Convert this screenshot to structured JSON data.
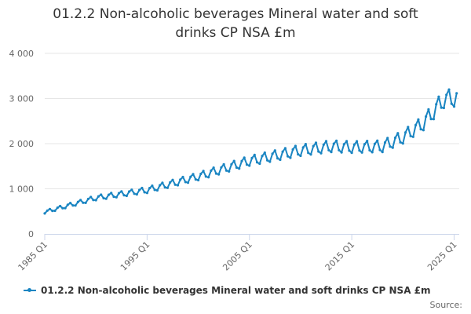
{
  "title_lines": [
    "01.2.2 Non-alcoholic beverages Mineral water and soft",
    "drinks CP NSA £m"
  ],
  "legend_label": "01.2.2 Non-alcoholic beverages Mineral water and soft drinks CP NSA £m",
  "source_label": "Source:",
  "colors": {
    "series": "#1a85c2",
    "grid": "#e6e6e6",
    "axis": "#ccd6eb"
  },
  "chart_data": {
    "type": "line",
    "title": "01.2.2 Non-alcoholic beverages Mineral water and soft drinks CP NSA £m",
    "xlabel": "",
    "ylabel": "",
    "x_range": [
      1985,
      2025.5
    ],
    "ylim": [
      0,
      4000
    ],
    "y_ticks": [
      0,
      1000,
      2000,
      3000,
      4000
    ],
    "y_tick_labels": [
      "0",
      "1 000",
      "2 000",
      "3 000",
      "4 000"
    ],
    "x_ticks": [
      1985,
      1995,
      2005,
      2015,
      2025
    ],
    "x_tick_labels": [
      "1985 Q1",
      "1995 Q1",
      "2005 Q1",
      "2015 Q1",
      "2025 Q1"
    ],
    "grid": true,
    "legend_position": "bottom",
    "quarterly_pattern": [
      -90,
      70,
      130,
      -50
    ],
    "series": [
      {
        "name": "01.2.2 Non-alcoholic beverages Mineral water and soft drinks CP NSA £m",
        "annual_trend": [
          {
            "year": 1985,
            "value": 480
          },
          {
            "year": 1990,
            "value": 790
          },
          {
            "year": 1995,
            "value": 960
          },
          {
            "year": 2000,
            "value": 1260
          },
          {
            "year": 2005,
            "value": 1600
          },
          {
            "year": 2010,
            "value": 1830
          },
          {
            "year": 2013,
            "value": 1920
          },
          {
            "year": 2015,
            "value": 1900
          },
          {
            "year": 2018,
            "value": 1920
          },
          {
            "year": 2020,
            "value": 2120
          },
          {
            "year": 2022,
            "value": 2430
          },
          {
            "year": 2024,
            "value": 2950
          },
          {
            "year": 2025.5,
            "value": 3000
          }
        ]
      }
    ]
  }
}
